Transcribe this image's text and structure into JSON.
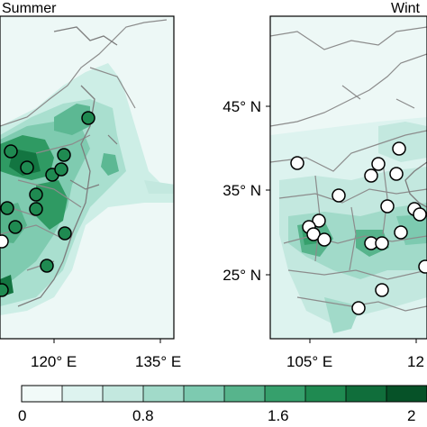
{
  "panels": [
    {
      "title": "Summer",
      "x_ticks": [
        "120° E",
        "135° E"
      ],
      "y_ticks": []
    },
    {
      "title": "Wint",
      "x_ticks": [
        "105° E",
        "12"
      ],
      "y_ticks": [
        "45° N",
        "35° N",
        "25° N"
      ]
    }
  ],
  "colorbar": {
    "labels": [
      "0",
      "0.8",
      "1.6",
      "2"
    ],
    "colors": [
      "#f1faf8",
      "#ddf3ef",
      "#c3e8df",
      "#a1dac9",
      "#7dcab0",
      "#57b48c",
      "#36a06c",
      "#1f8a51",
      "#106e3b",
      "#065228"
    ]
  }
}
